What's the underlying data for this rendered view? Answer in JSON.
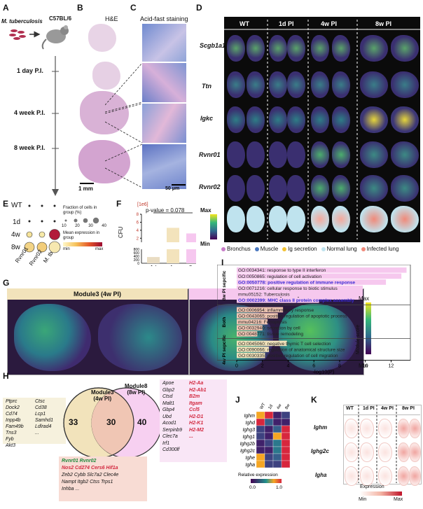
{
  "panels": {
    "A": {
      "letter": "A",
      "organism": "M. tuberculosis",
      "mouse": "C57BL/6",
      "timepoints": [
        "1 day P.I.",
        "4 week P.I.",
        "8 week P.I."
      ]
    },
    "B": {
      "letter": "B",
      "title": "H&E",
      "scale": "1 mm"
    },
    "C": {
      "letter": "C",
      "title": "Acid-fast staining",
      "scale": "50 μm"
    },
    "D": {
      "letter": "D",
      "columns": [
        "WT",
        "1d PI",
        "4w PI",
        "8w PI"
      ],
      "rows": [
        "Scgb1a1",
        "Ttn",
        "Igkc",
        "Rvnr01",
        "Rvnr02"
      ],
      "colorbar_max": "Max",
      "colorbar_min": "Min",
      "legend": [
        {
          "label": "Bronchus",
          "color": "#c77dc8"
        },
        {
          "label": "Muscle",
          "color": "#4a78c0"
        },
        {
          "label": "Ig secretion",
          "color": "#f2c233"
        },
        {
          "label": "Normal lung",
          "color": "#bfe3ee"
        },
        {
          "label": "Infected lung",
          "color": "#f08a7a"
        }
      ]
    },
    "E": {
      "letter": "E",
      "rows": [
        "WT",
        "1d",
        "4w",
        "8w"
      ],
      "cols": [
        "Rvnr01",
        "Rvnr02",
        "M. tb"
      ],
      "fraction_title": "Fraction of cells in group (%)",
      "fraction_ticks": [
        "10",
        "20",
        "30",
        "40"
      ],
      "expr_title": "Mean expression in group",
      "expr_min": "min",
      "expr_max": "max"
    },
    "F": {
      "letter": "F",
      "ylabel": "CFU",
      "exponent": "[1e6]",
      "pvalue": "p-value = 0.078",
      "upper_ticks": [
        "2",
        "4",
        "6",
        "8"
      ],
      "lower_ticks": [
        "0",
        "200",
        "400",
        "600",
        "800"
      ]
    },
    "G": {
      "letter": "G",
      "modules": [
        "Module3 (4w PI)",
        "Module8 (8w PI)"
      ],
      "score_label": "Module score",
      "max": "Max",
      "min": "Min"
    },
    "H": {
      "letter": "H",
      "left_title": "Module3\n(4w PI)",
      "right_title": "Module8\n(8w PI)",
      "left_count": "33",
      "mid_count": "30",
      "right_count": "40",
      "left_genes": [
        "Ptprc",
        "Ctsc",
        "Dock2",
        "Cd38",
        "Cd74",
        "Lcp1",
        "Inpp4b",
        "Samhd1",
        "Fam49b",
        "Ldlrad4",
        "Tns3",
        "...",
        "Fyb",
        "",
        "Akt3",
        ""
      ],
      "right_genes_black": [
        "Apoe",
        "Gbp2",
        "Ctsd",
        "Malt1",
        "Gbp4",
        "Ubd",
        "Acod1",
        "Serpinb9",
        "Clec7a",
        "Irf1",
        "Cd300lf"
      ],
      "right_genes_red": [
        "H2-Aa",
        "H2-Ab1",
        "B2m",
        "Itgam",
        "Ccl5",
        "H2-D1",
        "H2-K1",
        "H2-M2",
        "..."
      ],
      "mid_green": "Rvnr01 Rvnr02",
      "mid_red": "Nos2 Cd274 Cers6 Hif1a",
      "mid_black_1": "Zeb2 Cybb Slc7a2 Clec4e",
      "mid_black_2": "Nampt Itgb2 Ctss Trps1",
      "mid_black_3": "Inhba ..."
    },
    "I": {
      "letter": "I",
      "groups": [
        "8w PI sepcific",
        "Both",
        "4w PI sepcific"
      ],
      "xlabel": "-log10(P)",
      "xticks": [
        "0",
        "2",
        "4",
        "6",
        "8",
        "10",
        "12"
      ],
      "xmax": 13.5,
      "terms": [
        {
          "label": "GO:0034341: response to type II interferon",
          "value": 13.2,
          "group": 0,
          "highlight": false
        },
        {
          "label": "GO:0050865: regulation of cell activation",
          "value": 12.8,
          "group": 0,
          "highlight": false
        },
        {
          "label": "GO:0050778: positive regulation of immune response",
          "value": 11.6,
          "group": 0,
          "highlight": true
        },
        {
          "label": "GO:0071216: cellular response to biotic stimulus",
          "value": 9.8,
          "group": 0,
          "highlight": false
        },
        {
          "label": "mmu05152: Tuberculosis",
          "value": 7.2,
          "group": 0,
          "highlight": false
        },
        {
          "label": "GO:0002399: MHC class II protein complex assembly",
          "value": 6.4,
          "group": 0,
          "highlight": true
        },
        {
          "label": "GO:0006954: inflammatory response",
          "value": 3.6,
          "group": 1,
          "highlight": false
        },
        {
          "label": "GO:0043065: positive regulation of apoptotic process",
          "value": 3.2,
          "group": 1,
          "highlight": false
        },
        {
          "label": "mmu04216: Ferroptosis",
          "value": 2.4,
          "group": 1,
          "highlight": false
        },
        {
          "label": "GO:0032940: secretion by cell",
          "value": 2.0,
          "group": 1,
          "highlight": false
        },
        {
          "label": "GO:0048771: tissue remodeling",
          "value": 1.6,
          "group": 1,
          "highlight": false
        },
        {
          "label": "GO:0045060: negative thymic T cell selection",
          "value": 3.9,
          "group": 2,
          "highlight": false
        },
        {
          "label": "GO:0090066: regulation of anatomical structure size",
          "value": 2.5,
          "group": 2,
          "highlight": false
        },
        {
          "label": "GO:0030335: positive regulation of cell migration",
          "value": 2.2,
          "group": 2,
          "highlight": false
        }
      ]
    },
    "J": {
      "letter": "J",
      "genes": [
        "Ighm",
        "Ighd",
        "Ighg3",
        "Ighg1",
        "Ighg2b",
        "Ighg2c",
        "Ighe",
        "Igha"
      ],
      "cols": [
        "WT",
        "1d",
        "4w",
        "8w"
      ],
      "colorbar_label": "Relative expression",
      "cb_min": "0.0",
      "cb_max": "1.0"
    },
    "K": {
      "letter": "K",
      "columns": [
        "WT",
        "1d PI",
        "4w PI",
        "8w PI"
      ],
      "rows": [
        "Ighm",
        "Ighg2c",
        "Igha"
      ],
      "legend_title": "Expression",
      "min": "Min",
      "max": "Max"
    }
  },
  "chart_data": [
    {
      "type": "bar",
      "title": "",
      "categories": [
        "1d",
        "4w",
        "8w"
      ],
      "values": [
        0.4,
        4.6,
        3.2
      ],
      "ylabel": "CFU",
      "annotation": "p-value = 0.078",
      "colors": [
        "#e9dcc2",
        "#f3e3bc",
        "#f6c7ef"
      ]
    },
    {
      "type": "heatmap",
      "rows": [
        "Ighm",
        "Ighd",
        "Ighg3",
        "Ighg1",
        "Ighg2b",
        "Ighg2c",
        "Ighe",
        "Igha"
      ],
      "cols": [
        "WT",
        "1d",
        "4w",
        "8w"
      ],
      "values": [
        [
          0.5,
          1.0,
          0.1,
          0.2
        ],
        [
          1.0,
          0.3,
          0.1,
          0.1
        ],
        [
          0.2,
          0.1,
          0.3,
          1.0
        ],
        [
          0.2,
          0.1,
          0.5,
          1.0
        ],
        [
          0.1,
          0.2,
          0.4,
          1.0
        ],
        [
          0.1,
          0.1,
          0.4,
          1.0
        ],
        [
          0.6,
          0.2,
          0.3,
          1.0
        ],
        [
          0.5,
          0.2,
          0.2,
          1.0
        ]
      ]
    },
    {
      "type": "bar",
      "orientation": "horizontal",
      "xlabel": "-log10(P)",
      "categories": [
        "GO:0034341",
        "GO:0050865",
        "GO:0050778",
        "GO:0071216",
        "mmu05152",
        "GO:0002399",
        "GO:0006954",
        "GO:0043065",
        "mmu04216",
        "GO:0032940",
        "GO:0048771",
        "GO:0045060",
        "GO:0090066",
        "GO:0030335"
      ],
      "values": [
        13.2,
        12.8,
        11.6,
        9.8,
        7.2,
        6.4,
        3.6,
        3.2,
        2.4,
        2.0,
        1.6,
        3.9,
        2.5,
        2.2
      ]
    }
  ]
}
